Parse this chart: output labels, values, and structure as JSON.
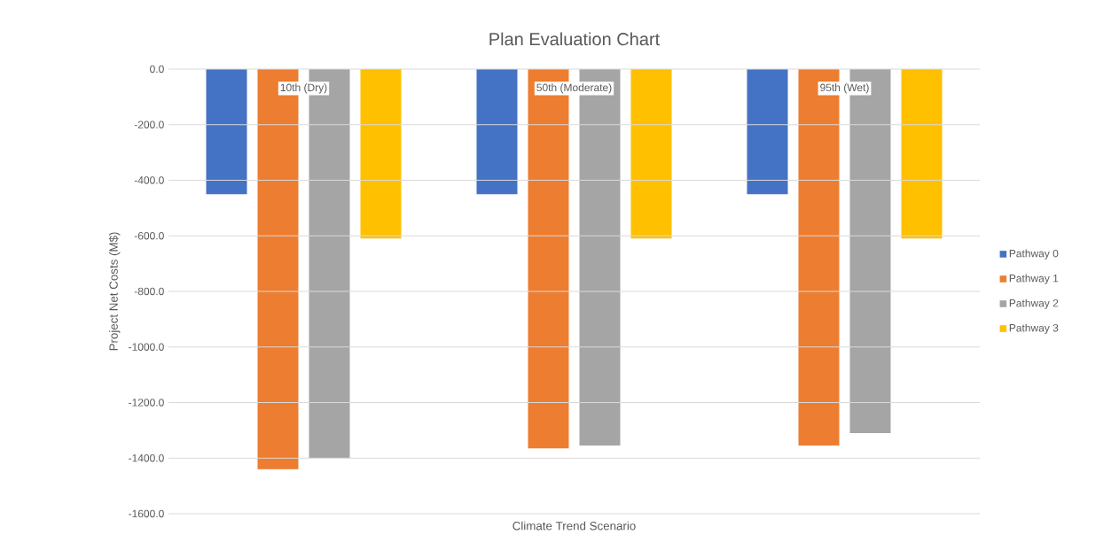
{
  "chart_data": {
    "type": "bar",
    "title": "Plan Evaluation Chart",
    "xlabel": "Climate Trend Scenario",
    "ylabel": "Project Net Costs (M$)",
    "categories": [
      "10th (Dry)",
      "50th (Moderate)",
      "95th (Wet)"
    ],
    "series": [
      {
        "name": "Pathway 0",
        "color": "#4472c4",
        "values": [
          -450,
          -450,
          -450
        ]
      },
      {
        "name": "Pathway 1",
        "color": "#ed7d31",
        "values": [
          -1440,
          -1365,
          -1355
        ]
      },
      {
        "name": "Pathway 2",
        "color": "#a5a5a5",
        "values": [
          -1400,
          -1355,
          -1310
        ]
      },
      {
        "name": "Pathway 3",
        "color": "#ffc000",
        "values": [
          -610,
          -610,
          -610
        ]
      }
    ],
    "ylim": [
      -1600,
      0
    ],
    "yticks": [
      {
        "value": -1600,
        "label": "-1600.0"
      },
      {
        "value": -1400,
        "label": "-1400.0"
      },
      {
        "value": -1200,
        "label": "-1200.0"
      },
      {
        "value": -1000,
        "label": "-1000.0"
      },
      {
        "value": -800,
        "label": "-800.0"
      },
      {
        "value": -600,
        "label": "-600.0"
      },
      {
        "value": -400,
        "label": "-400.0"
      },
      {
        "value": -200,
        "label": "-200.0"
      },
      {
        "value": 0,
        "label": "0.0"
      }
    ],
    "grid": "y",
    "legend": "right"
  }
}
